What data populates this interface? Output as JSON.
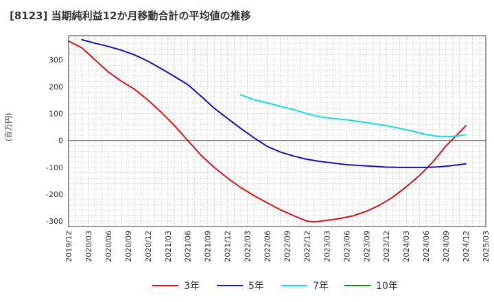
{
  "chart_data": {
    "type": "line",
    "title": "[8123]  当期純利益12か月移動合計の平均値の推移",
    "xlabel": "",
    "ylabel": "(百万円)",
    "ylim": [
      -320,
      390
    ],
    "yticks": [
      300,
      200,
      100,
      0,
      -100,
      -200,
      -300
    ],
    "xlim": [
      "2019-12",
      "2025-03"
    ],
    "x_tick_labels": [
      "2019/12",
      "2020/03",
      "2020/06",
      "2020/09",
      "2020/12",
      "2021/03",
      "2021/06",
      "2021/09",
      "2021/12",
      "2022/03",
      "2022/06",
      "2022/09",
      "2022/12",
      "2023/03",
      "2023/06",
      "2023/09",
      "2023/12",
      "2024/03",
      "2024/06",
      "2024/09",
      "2024/12",
      "2025/03"
    ],
    "grid": true,
    "legend_position": "bottom",
    "series": [
      {
        "name": "3年",
        "color": "#dd1111",
        "points": [
          [
            "2019-12",
            370
          ],
          [
            "2020-02",
            345
          ],
          [
            "2020-04",
            300
          ],
          [
            "2020-06",
            255
          ],
          [
            "2020-08",
            220
          ],
          [
            "2020-10",
            190
          ],
          [
            "2020-12",
            150
          ],
          [
            "2021-02",
            105
          ],
          [
            "2021-04",
            55
          ],
          [
            "2021-06",
            0
          ],
          [
            "2021-08",
            -55
          ],
          [
            "2021-10",
            -100
          ],
          [
            "2021-12",
            -140
          ],
          [
            "2022-02",
            -175
          ],
          [
            "2022-04",
            -205
          ],
          [
            "2022-06",
            -232
          ],
          [
            "2022-08",
            -258
          ],
          [
            "2022-10",
            -280
          ],
          [
            "2022-12",
            -300
          ],
          [
            "2023-01",
            -303
          ],
          [
            "2023-03",
            -297
          ],
          [
            "2023-05",
            -290
          ],
          [
            "2023-07",
            -280
          ],
          [
            "2023-09",
            -263
          ],
          [
            "2023-11",
            -240
          ],
          [
            "2024-01",
            -210
          ],
          [
            "2024-03",
            -172
          ],
          [
            "2024-05",
            -130
          ],
          [
            "2024-07",
            -80
          ],
          [
            "2024-09",
            -20
          ],
          [
            "2024-12",
            55
          ]
        ]
      },
      {
        "name": "5年",
        "color": "#1111bb",
        "points": [
          [
            "2020-02",
            375
          ],
          [
            "2020-04",
            362
          ],
          [
            "2020-06",
            350
          ],
          [
            "2020-08",
            336
          ],
          [
            "2020-10",
            318
          ],
          [
            "2020-12",
            295
          ],
          [
            "2021-02",
            267
          ],
          [
            "2021-04",
            238
          ],
          [
            "2021-06",
            208
          ],
          [
            "2021-08",
            165
          ],
          [
            "2021-10",
            120
          ],
          [
            "2021-12",
            82
          ],
          [
            "2022-02",
            45
          ],
          [
            "2022-04",
            10
          ],
          [
            "2022-06",
            -22
          ],
          [
            "2022-08",
            -43
          ],
          [
            "2022-10",
            -58
          ],
          [
            "2022-12",
            -70
          ],
          [
            "2023-02",
            -78
          ],
          [
            "2023-04",
            -84
          ],
          [
            "2023-06",
            -90
          ],
          [
            "2023-08",
            -93
          ],
          [
            "2023-10",
            -96
          ],
          [
            "2023-12",
            -99
          ],
          [
            "2024-02",
            -100
          ],
          [
            "2024-04",
            -100
          ],
          [
            "2024-06",
            -100
          ],
          [
            "2024-08",
            -98
          ],
          [
            "2024-10",
            -93
          ],
          [
            "2024-12",
            -87
          ]
        ]
      },
      {
        "name": "7年",
        "color": "#11dddd",
        "points": [
          [
            "2022-02",
            170
          ],
          [
            "2022-04",
            152
          ],
          [
            "2022-06",
            140
          ],
          [
            "2022-08",
            127
          ],
          [
            "2022-10",
            115
          ],
          [
            "2022-12",
            100
          ],
          [
            "2023-02",
            88
          ],
          [
            "2023-04",
            82
          ],
          [
            "2023-06",
            77
          ],
          [
            "2023-08",
            70
          ],
          [
            "2023-10",
            63
          ],
          [
            "2023-12",
            55
          ],
          [
            "2024-02",
            45
          ],
          [
            "2024-04",
            35
          ],
          [
            "2024-06",
            22
          ],
          [
            "2024-08",
            15
          ],
          [
            "2024-10",
            15
          ],
          [
            "2024-12",
            22
          ]
        ]
      },
      {
        "name": "10年",
        "color": "#118811",
        "points": []
      }
    ]
  }
}
